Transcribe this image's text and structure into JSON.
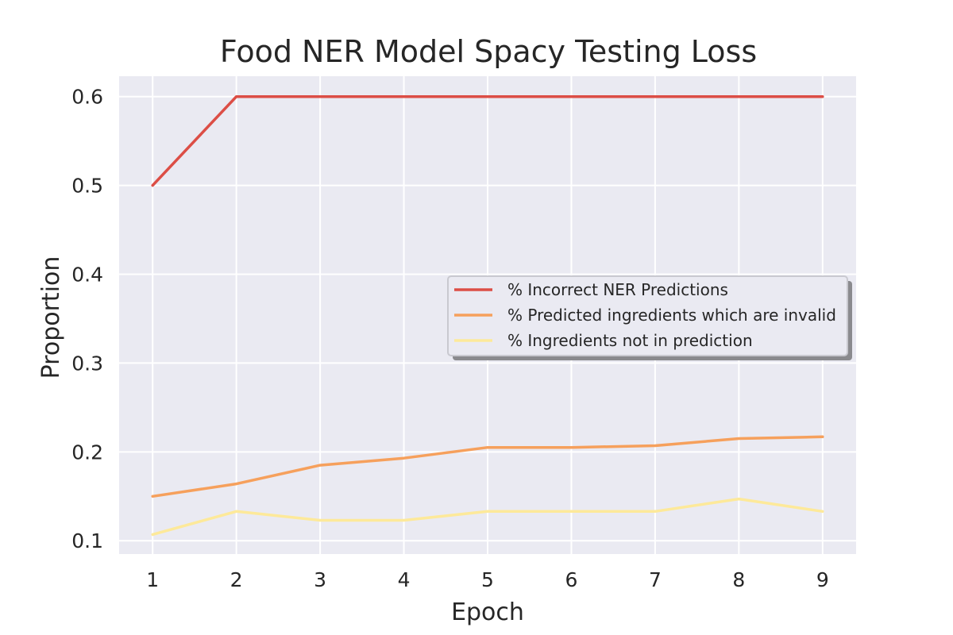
{
  "chart_data": {
    "type": "line",
    "title": "Food NER Model Spacy Testing Loss",
    "xlabel": "Epoch",
    "ylabel": "Proportion",
    "x": [
      1,
      2,
      3,
      4,
      5,
      6,
      7,
      8,
      9
    ],
    "xlim": [
      0.6,
      9.4
    ],
    "ylim": [
      0.085,
      0.623
    ],
    "yticks": [
      0.1,
      0.2,
      0.3,
      0.4,
      0.5,
      0.6
    ],
    "ytick_labels": [
      "0.1",
      "0.2",
      "0.3",
      "0.4",
      "0.5",
      "0.6"
    ],
    "xticks": [
      1,
      2,
      3,
      4,
      5,
      6,
      7,
      8,
      9
    ],
    "xtick_labels": [
      "1",
      "2",
      "3",
      "4",
      "5",
      "6",
      "7",
      "8",
      "9"
    ],
    "grid": true,
    "legend_position": "center-right",
    "background_color": "#eaeaf2",
    "grid_color": "#ffffff",
    "series": [
      {
        "name": "% Incorrect NER Predictions",
        "color": "#dc4e46",
        "values": [
          0.5,
          0.6,
          0.6,
          0.6,
          0.6,
          0.6,
          0.6,
          0.6,
          0.6
        ]
      },
      {
        "name": "% Predicted ingredients which are invalid",
        "color": "#f6a05c",
        "values": [
          0.15,
          0.164,
          0.185,
          0.193,
          0.205,
          0.205,
          0.207,
          0.215,
          0.217
        ]
      },
      {
        "name": "% Ingredients not in prediction",
        "color": "#fde99a",
        "values": [
          0.107,
          0.133,
          0.123,
          0.123,
          0.133,
          0.133,
          0.133,
          0.147,
          0.133
        ]
      }
    ]
  }
}
